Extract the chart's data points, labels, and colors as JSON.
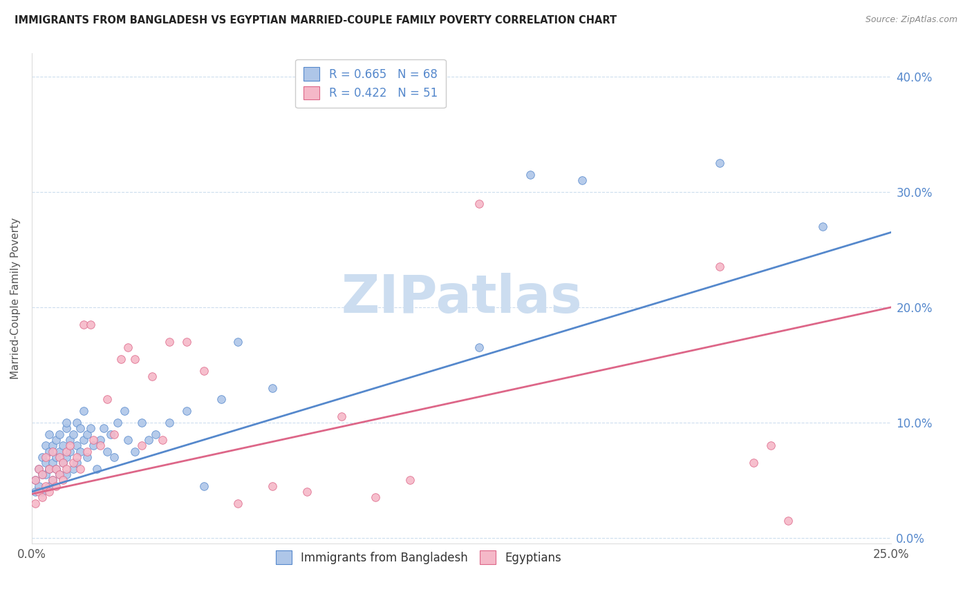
{
  "title": "IMMIGRANTS FROM BANGLADESH VS EGYPTIAN MARRIED-COUPLE FAMILY POVERTY CORRELATION CHART",
  "source": "Source: ZipAtlas.com",
  "ylabel": "Married-Couple Family Poverty",
  "ytick_vals": [
    0.0,
    0.1,
    0.2,
    0.3,
    0.4
  ],
  "xtick_vals": [
    0.0,
    0.05,
    0.1,
    0.15,
    0.2,
    0.25
  ],
  "xlim": [
    0.0,
    0.25
  ],
  "ylim": [
    -0.005,
    0.42
  ],
  "bangladesh_R": 0.665,
  "bangladesh_N": 68,
  "egypt_R": 0.422,
  "egypt_N": 51,
  "bangladesh_color": "#aec6e8",
  "egypt_color": "#f5b8c8",
  "bangladesh_line_color": "#5588cc",
  "egypt_line_color": "#dd6688",
  "watermark": "ZIPatlas",
  "watermark_color": "#ccddf0",
  "background_color": "#ffffff",
  "grid_color": "#ccddee",
  "bangladesh_x": [
    0.001,
    0.001,
    0.002,
    0.002,
    0.003,
    0.003,
    0.003,
    0.004,
    0.004,
    0.004,
    0.005,
    0.005,
    0.005,
    0.005,
    0.006,
    0.006,
    0.006,
    0.007,
    0.007,
    0.007,
    0.008,
    0.008,
    0.008,
    0.009,
    0.009,
    0.01,
    0.01,
    0.01,
    0.01,
    0.011,
    0.011,
    0.012,
    0.012,
    0.013,
    0.013,
    0.013,
    0.014,
    0.014,
    0.015,
    0.015,
    0.016,
    0.016,
    0.017,
    0.018,
    0.019,
    0.02,
    0.021,
    0.022,
    0.023,
    0.024,
    0.025,
    0.027,
    0.028,
    0.03,
    0.032,
    0.034,
    0.036,
    0.04,
    0.045,
    0.05,
    0.055,
    0.06,
    0.07,
    0.13,
    0.145,
    0.16,
    0.2,
    0.23
  ],
  "bangladesh_y": [
    0.05,
    0.04,
    0.06,
    0.045,
    0.055,
    0.04,
    0.07,
    0.055,
    0.065,
    0.08,
    0.06,
    0.075,
    0.045,
    0.09,
    0.065,
    0.08,
    0.05,
    0.07,
    0.085,
    0.06,
    0.075,
    0.09,
    0.055,
    0.08,
    0.065,
    0.07,
    0.095,
    0.055,
    0.1,
    0.085,
    0.075,
    0.09,
    0.06,
    0.1,
    0.08,
    0.065,
    0.095,
    0.075,
    0.085,
    0.11,
    0.09,
    0.07,
    0.095,
    0.08,
    0.06,
    0.085,
    0.095,
    0.075,
    0.09,
    0.07,
    0.1,
    0.11,
    0.085,
    0.075,
    0.1,
    0.085,
    0.09,
    0.1,
    0.11,
    0.045,
    0.12,
    0.17,
    0.13,
    0.165,
    0.315,
    0.31,
    0.325,
    0.27
  ],
  "egypt_x": [
    0.001,
    0.001,
    0.002,
    0.002,
    0.003,
    0.003,
    0.004,
    0.004,
    0.005,
    0.005,
    0.006,
    0.006,
    0.007,
    0.007,
    0.008,
    0.008,
    0.009,
    0.009,
    0.01,
    0.01,
    0.011,
    0.012,
    0.013,
    0.014,
    0.015,
    0.016,
    0.017,
    0.018,
    0.02,
    0.022,
    0.024,
    0.026,
    0.028,
    0.03,
    0.032,
    0.035,
    0.038,
    0.04,
    0.045,
    0.05,
    0.06,
    0.07,
    0.08,
    0.09,
    0.1,
    0.11,
    0.13,
    0.2,
    0.21,
    0.215,
    0.22
  ],
  "egypt_y": [
    0.03,
    0.05,
    0.04,
    0.06,
    0.035,
    0.055,
    0.045,
    0.07,
    0.04,
    0.06,
    0.05,
    0.075,
    0.045,
    0.06,
    0.055,
    0.07,
    0.05,
    0.065,
    0.06,
    0.075,
    0.08,
    0.065,
    0.07,
    0.06,
    0.185,
    0.075,
    0.185,
    0.085,
    0.08,
    0.12,
    0.09,
    0.155,
    0.165,
    0.155,
    0.08,
    0.14,
    0.085,
    0.17,
    0.17,
    0.145,
    0.03,
    0.045,
    0.04,
    0.105,
    0.035,
    0.05,
    0.29,
    0.235,
    0.065,
    0.08,
    0.015
  ],
  "line_b_x0": 0.0,
  "line_b_y0": 0.04,
  "line_b_x1": 0.25,
  "line_b_y1": 0.265,
  "line_e_x0": 0.0,
  "line_e_y0": 0.038,
  "line_e_x1": 0.25,
  "line_e_y1": 0.2
}
